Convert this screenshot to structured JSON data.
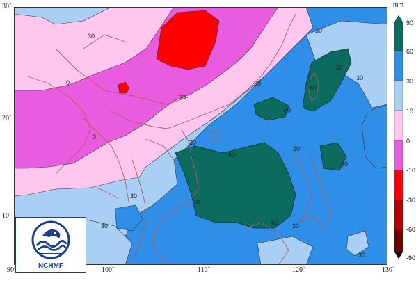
{
  "map": {
    "unit": "mm",
    "lon_labels": [
      "90˚",
      "100˚",
      "110˚",
      "120˚",
      "130˚"
    ],
    "lat_labels": [
      "30˚",
      "20˚",
      "10˚"
    ],
    "colorbar": {
      "levels": [
        "90",
        "60",
        "30",
        "10",
        "0",
        "-10",
        "-30",
        "-60",
        "-90"
      ],
      "colors": [
        "#0b6b5f",
        "#2f8fe8",
        "#a9cff5",
        "#ffc6ee",
        "#e95ce0",
        "#ff0000",
        "#b80000",
        "#6b0000",
        "#1a0000"
      ]
    },
    "contour_labels": [
      "30",
      "0",
      "30",
      "30",
      "0",
      "30",
      "30",
      "60",
      "30",
      "60",
      "60",
      "60",
      "30",
      "60",
      "30",
      "30",
      "30",
      "30",
      "30",
      "30"
    ],
    "colors": {
      "ocean_light": "#a9cff5",
      "ocean_mid": "#2f8fe8",
      "high": "#0b6b5f",
      "pink_light": "#ffc6ee",
      "magenta": "#e95ce0",
      "red": "#ff0000",
      "coast": "#b05a5a"
    }
  },
  "logo": {
    "text": "NCHMF"
  }
}
